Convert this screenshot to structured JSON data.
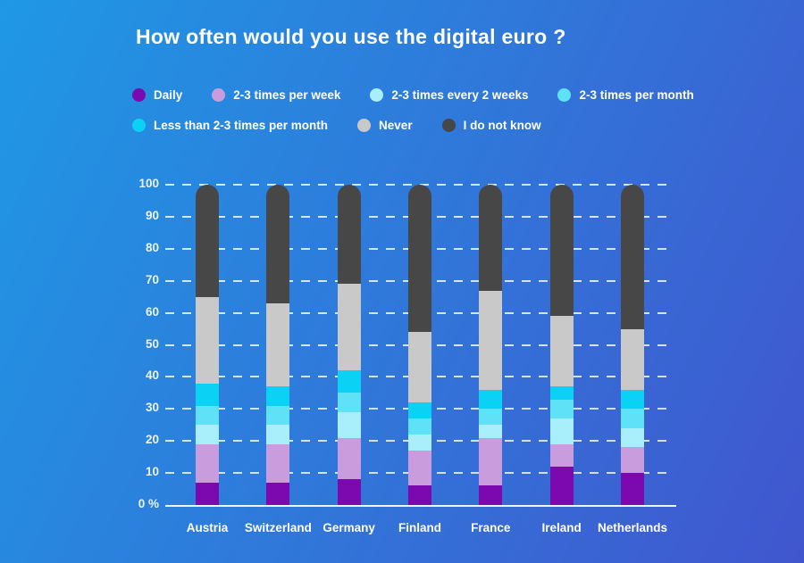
{
  "title": "How often would you use the digital euro ?",
  "background": {
    "gradient_from": "#1F98E4",
    "gradient_mid": "#2E7BDB",
    "gradient_to": "#4156CE"
  },
  "chart_data": {
    "type": "bar",
    "stacked": true,
    "title": "How often would you use the digital euro ?",
    "categories": [
      "Austria",
      "Switzerland",
      "Germany",
      "Finland",
      "France",
      "Ireland",
      "Netherlands"
    ],
    "series": [
      {
        "name": "Daily",
        "color": "#7B09AF",
        "values": [
          7,
          7,
          8,
          6,
          6,
          12,
          10
        ]
      },
      {
        "name": "2-3 times per week",
        "color": "#C99CDE",
        "values": [
          12,
          12,
          13,
          11,
          15,
          7,
          8
        ]
      },
      {
        "name": "2-3 times every 2 weeks",
        "color": "#A9EFFB",
        "values": [
          6,
          6,
          8,
          5,
          4,
          8,
          6
        ]
      },
      {
        "name": "2-3 times per month",
        "color": "#5FE2F7",
        "values": [
          6,
          6,
          6,
          5,
          5,
          6,
          6
        ]
      },
      {
        "name": "Less than 2-3 times per month",
        "color": "#0BD2F5",
        "values": [
          7,
          6,
          7,
          5,
          6,
          4,
          6
        ]
      },
      {
        "name": "Never",
        "color": "#C9C9C9",
        "values": [
          27,
          26,
          27,
          22,
          31,
          22,
          19
        ]
      },
      {
        "name": "I do not know",
        "color": "#474747",
        "values": [
          35,
          37,
          31,
          46,
          33,
          41,
          45
        ]
      }
    ],
    "y_axis": {
      "min": 0,
      "max": 100,
      "unit": "%",
      "tick_values": [
        100,
        90,
        80,
        70,
        60,
        50,
        40,
        30,
        20,
        10,
        0
      ],
      "tick_labels": [
        "100",
        "90",
        "80",
        "70",
        "60",
        "50",
        "40",
        "30",
        "20",
        "10",
        "0 %"
      ]
    },
    "grid": "horizontal-dashed",
    "legend_position": "top",
    "legend_rows": [
      [
        "Daily",
        "2-3 times per week",
        "2-3 times every 2 weeks",
        "2-3 times per month"
      ],
      [
        "Less than 2-3 times per month",
        "Never",
        "I do not know"
      ]
    ]
  }
}
